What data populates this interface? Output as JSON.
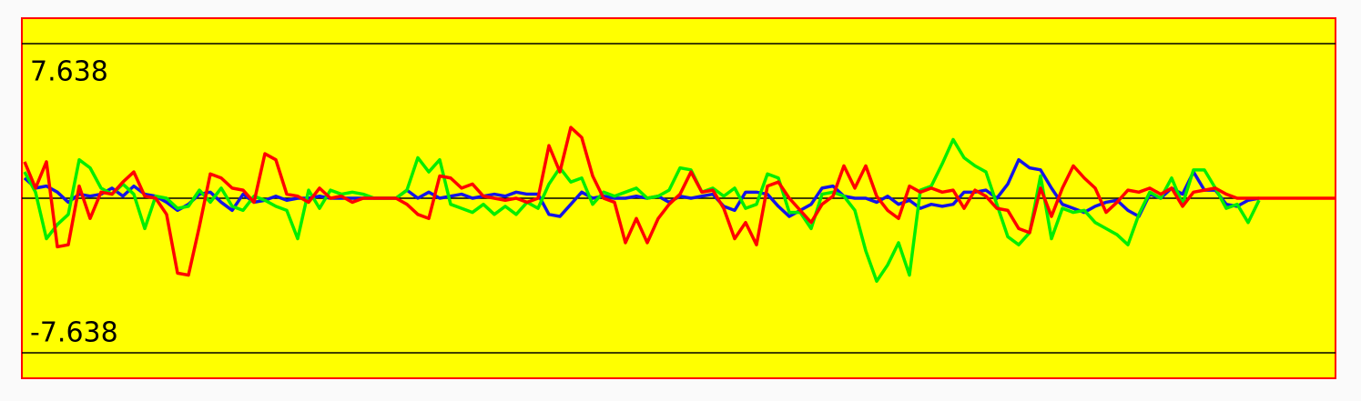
{
  "chart_data": {
    "type": "line",
    "ylim": [
      -7.638,
      7.638
    ],
    "yticks": [
      7.638,
      -7.638
    ],
    "series": [
      {
        "color": "#1414e6",
        "values": [
          1.0,
          0.5,
          0.6,
          0.3,
          -0.2,
          0.2,
          0.1,
          0.2,
          0.5,
          0.1,
          0.6,
          0.2,
          0.1,
          -0.2,
          -0.6,
          -0.3,
          0.2,
          0.3,
          -0.2,
          -0.6,
          0.2,
          -0.2,
          -0.1,
          0.1,
          -0.1,
          0,
          0,
          0.1,
          0,
          0,
          0,
          0,
          0,
          0,
          0,
          0.4,
          0,
          0.3,
          0,
          0.1,
          0.2,
          0,
          0.1,
          0.2,
          0.1,
          0.3,
          0.2,
          0.2,
          -0.8,
          -0.9,
          -0.3,
          0.3,
          0,
          0.1,
          0,
          0,
          0.1,
          0,
          0.1,
          -0.2,
          0.1,
          0,
          0.1,
          0.2,
          -0.4,
          -0.6,
          0.3,
          0.3,
          0.2,
          -0.4,
          -0.9,
          -0.6,
          -0.3,
          0.5,
          0.6,
          0.1,
          0,
          0,
          -0.2,
          0.1,
          -0.3,
          -0.1,
          -0.5,
          -0.3,
          -0.4,
          -0.3,
          0.3,
          0.3,
          0.4,
          0,
          0.7,
          1.9,
          1.5,
          1.4,
          0.5,
          -0.3,
          -0.5,
          -0.7,
          -0.4,
          -0.2,
          -0.1,
          -0.6,
          -0.9,
          0.2,
          0,
          0.5,
          0.2,
          1.3,
          0.4,
          0.4,
          -0.3,
          -0.4,
          -0.1,
          0,
          null,
          null,
          null,
          null,
          null,
          null,
          null
        ]
      },
      {
        "color": "#00ee00",
        "values": [
          1.3,
          0.3,
          -2.0,
          -1.3,
          -0.8,
          1.9,
          1.5,
          0.5,
          0.2,
          0.7,
          0.2,
          -1.5,
          0.1,
          0,
          -0.5,
          -0.4,
          0.4,
          -0.2,
          0.5,
          -0.4,
          -0.6,
          0.1,
          -0.1,
          -0.4,
          -0.6,
          -2.0,
          0.4,
          -0.5,
          0.4,
          0.2,
          0.3,
          0.2,
          0,
          0,
          0,
          0.4,
          2.0,
          1.3,
          1.9,
          -0.3,
          -0.5,
          -0.7,
          -0.3,
          -0.8,
          -0.4,
          -0.8,
          -0.2,
          -0.5,
          0.7,
          1.5,
          0.8,
          1.0,
          -0.3,
          0.3,
          0.1,
          0.3,
          0.5,
          0,
          0.1,
          0.4,
          1.5,
          1.4,
          0.3,
          0.5,
          0.1,
          0.5,
          -0.5,
          -0.3,
          1.2,
          1.0,
          -0.7,
          -0.7,
          -1.5,
          0.2,
          0.3,
          0.1,
          -0.6,
          -2.6,
          -4.1,
          -3.3,
          -2.2,
          -3.8,
          0.4,
          0.6,
          1.7,
          2.9,
          2.0,
          1.6,
          1.3,
          -0.3,
          -1.9,
          -2.3,
          -1.7,
          1.1,
          -2.0,
          -0.5,
          -0.7,
          -0.6,
          -1.2,
          -1.5,
          -1.8,
          -2.3,
          -0.8,
          0.3,
          0,
          1.0,
          -0.3,
          1.4,
          1.4,
          0.5,
          -0.5,
          -0.3,
          -1.2,
          -0.1,
          null,
          null,
          null,
          null,
          null,
          null,
          null
        ]
      },
      {
        "color": "#ff0000",
        "values": [
          1.8,
          0.5,
          1.8,
          -2.4,
          -2.3,
          0.6,
          -1.0,
          0.3,
          0.2,
          0.8,
          1.3,
          0.1,
          0,
          -0.8,
          -3.7,
          -3.8,
          -1.4,
          1.2,
          1.0,
          0.5,
          0.4,
          -0.2,
          2.2,
          1.9,
          0.2,
          0.1,
          -0.2,
          0.5,
          0,
          0.1,
          -0.2,
          0,
          0,
          0,
          0,
          -0.3,
          -0.8,
          -1.0,
          1.1,
          1.0,
          0.5,
          0.7,
          0.1,
          0,
          -0.1,
          0,
          -0.2,
          0,
          2.6,
          1.3,
          3.5,
          3.0,
          1.1,
          0,
          -0.2,
          -2.2,
          -1.0,
          -2.2,
          -1.0,
          -0.3,
          0.2,
          1.3,
          0.3,
          0.4,
          -0.5,
          -2.0,
          -1.2,
          -2.3,
          0.6,
          0.8,
          0,
          -0.6,
          -1.2,
          -0.3,
          0.1,
          1.6,
          0.5,
          1.6,
          0.1,
          -0.6,
          -1.0,
          0.6,
          0.3,
          0.5,
          0.3,
          0.4,
          -0.5,
          0.4,
          0.1,
          -0.5,
          -0.6,
          -1.5,
          -1.7,
          0.5,
          -0.9,
          0.5,
          1.6,
          1.0,
          0.5,
          -0.7,
          -0.2,
          0.4,
          0.3,
          0.5,
          0.2,
          0.5,
          -0.4,
          0.3,
          0.4,
          0.5,
          0.2,
          0,
          0,
          0,
          0,
          0,
          0,
          0,
          0,
          0,
          0
        ]
      }
    ]
  }
}
